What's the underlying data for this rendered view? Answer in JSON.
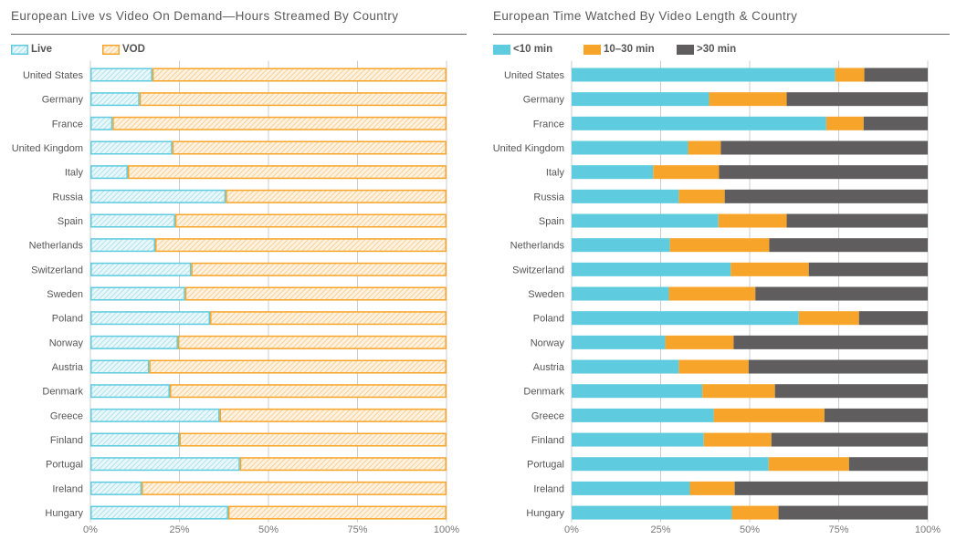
{
  "colors": {
    "live": "#5ecbdf",
    "vod": "#f7a52a",
    "lt10": "#5ecbdf",
    "10to30": "#f7a52a",
    "gt30": "#5f5d5e",
    "grid": "#cccccc",
    "text": "#555555"
  },
  "chart_data": [
    {
      "type": "bar",
      "orientation": "horizontal",
      "stacked": true,
      "normalized": true,
      "title": "European Live vs Video On Demand—Hours Streamed By Country",
      "legend": [
        "Live",
        "VOD"
      ],
      "legend_position": "top-left",
      "fill_style": "hatched",
      "categories": [
        "United States",
        "Germany",
        "France",
        "United Kingdom",
        "Italy",
        "Russia",
        "Spain",
        "Netherlands",
        "Switzerland",
        "Sweden",
        "Poland",
        "Norway",
        "Austria",
        "Denmark",
        "Greece",
        "Finland",
        "Portugal",
        "Ireland",
        "Hungary"
      ],
      "series": [
        {
          "name": "Live",
          "values": [
            17.4,
            13.8,
            6.2,
            23.0,
            10.5,
            38.0,
            23.8,
            18.2,
            28.3,
            26.6,
            33.6,
            24.6,
            16.5,
            22.3,
            36.3,
            25.0,
            42.0,
            14.4,
            38.7
          ]
        },
        {
          "name": "VOD",
          "values": [
            82.6,
            86.2,
            93.8,
            77.0,
            89.5,
            62.0,
            76.2,
            81.8,
            71.7,
            73.4,
            66.4,
            75.4,
            83.5,
            77.7,
            63.7,
            75.0,
            58.0,
            85.6,
            61.3
          ]
        }
      ],
      "xlabel": "",
      "ylabel": "",
      "xlim": [
        0,
        100
      ],
      "xticks": [
        "0%",
        "25%",
        "50%",
        "75%",
        "100%"
      ],
      "grid": true
    },
    {
      "type": "bar",
      "orientation": "horizontal",
      "stacked": true,
      "normalized": true,
      "title": "European Time Watched By Video Length & Country",
      "legend": [
        "<10 min",
        "10–30 min",
        ">30 min"
      ],
      "legend_position": "top-left",
      "fill_style": "solid",
      "categories": [
        "United States",
        "Germany",
        "France",
        "United Kingdom",
        "Italy",
        "Russia",
        "Spain",
        "Netherlands",
        "Switzerland",
        "Sweden",
        "Poland",
        "Norway",
        "Austria",
        "Denmark",
        "Greece",
        "Finland",
        "Portugal",
        "Ireland",
        "Hungary"
      ],
      "series": [
        {
          "name": "<10 min",
          "values": [
            74.0,
            38.6,
            71.5,
            32.7,
            22.9,
            30.1,
            41.2,
            27.6,
            44.7,
            27.3,
            63.8,
            26.3,
            30.1,
            36.7,
            39.9,
            37.1,
            55.3,
            33.2,
            45.0
          ]
        },
        {
          "name": "10–30 min",
          "values": [
            8.2,
            21.8,
            10.5,
            9.2,
            18.5,
            12.9,
            19.2,
            27.9,
            21.9,
            24.3,
            16.9,
            19.2,
            19.6,
            20.4,
            31.1,
            19.0,
            22.6,
            12.6,
            13.1
          ]
        },
        {
          "name": ">30 min",
          "values": [
            17.8,
            39.6,
            18.0,
            58.1,
            58.6,
            57.0,
            39.6,
            44.5,
            33.4,
            48.4,
            19.3,
            54.5,
            50.3,
            42.9,
            29.0,
            43.9,
            22.1,
            54.2,
            41.9
          ]
        }
      ],
      "xlabel": "",
      "ylabel": "",
      "xlim": [
        0,
        100
      ],
      "xticks": [
        "0%",
        "25%",
        "50%",
        "75%",
        "100%"
      ],
      "grid": true
    }
  ]
}
